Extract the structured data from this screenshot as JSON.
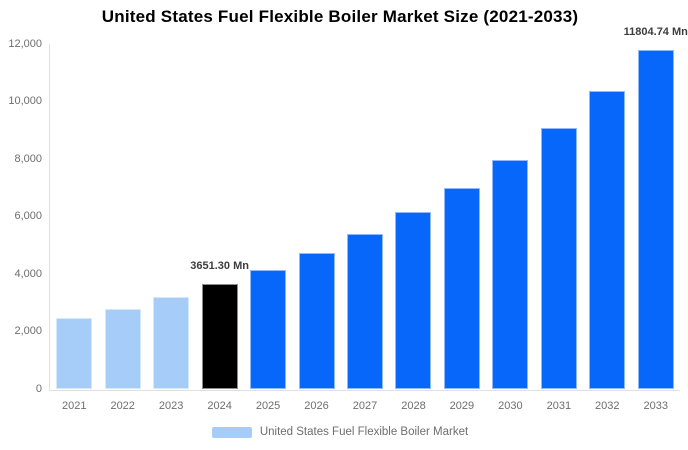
{
  "title": "United States Fuel Flexible Boiler Market Size (2021-2033)",
  "legend": {
    "label": "United States Fuel Flexible Boiler Market",
    "swatch_color": "#a5cdf8"
  },
  "colors": {
    "historical_bar": "#a5cdf8",
    "base_year_bar": "#000000",
    "forecast_bar": "#0767fb",
    "axis_line": "#e0e0e0",
    "tick_text": "#6e6e6e",
    "annotation_text": "#3d3d3d",
    "title_text": "#000000",
    "background": "#ffffff"
  },
  "chart_data": {
    "type": "bar",
    "title": "United States Fuel Flexible Boiler Market Size (2021-2033)",
    "categories": [
      "2021",
      "2022",
      "2023",
      "2024",
      "2025",
      "2026",
      "2027",
      "2028",
      "2029",
      "2030",
      "2031",
      "2032",
      "2033"
    ],
    "values": [
      2469,
      2813,
      3205,
      3651.3,
      4160,
      4740,
      5400,
      6152,
      7009,
      7986,
      9098,
      10362,
      11804.74
    ],
    "point_colors": [
      "#a5cdf8",
      "#a5cdf8",
      "#a5cdf8",
      "#000000",
      "#0767fb",
      "#0767fb",
      "#0767fb",
      "#0767fb",
      "#0767fb",
      "#0767fb",
      "#0767fb",
      "#0767fb",
      "#0767fb"
    ],
    "annotations": [
      {
        "index": 3,
        "text": "3651.30 Mn"
      },
      {
        "index": 12,
        "text": "11804.74 Mn"
      }
    ],
    "y_ticks": [
      {
        "value": 0,
        "label": "0"
      },
      {
        "value": 2000,
        "label": "2,000"
      },
      {
        "value": 4000,
        "label": "4,000"
      },
      {
        "value": 6000,
        "label": "6,000"
      },
      {
        "value": 8000,
        "label": "8,000"
      },
      {
        "value": 10000,
        "label": "10,000"
      },
      {
        "value": 12000,
        "label": "12,000"
      }
    ],
    "ylim": [
      0,
      12000
    ],
    "xlabel": "",
    "ylabel": "",
    "grid": false,
    "legend_position": "bottom",
    "legend_entries": [
      "United States Fuel Flexible Boiler Market"
    ]
  }
}
